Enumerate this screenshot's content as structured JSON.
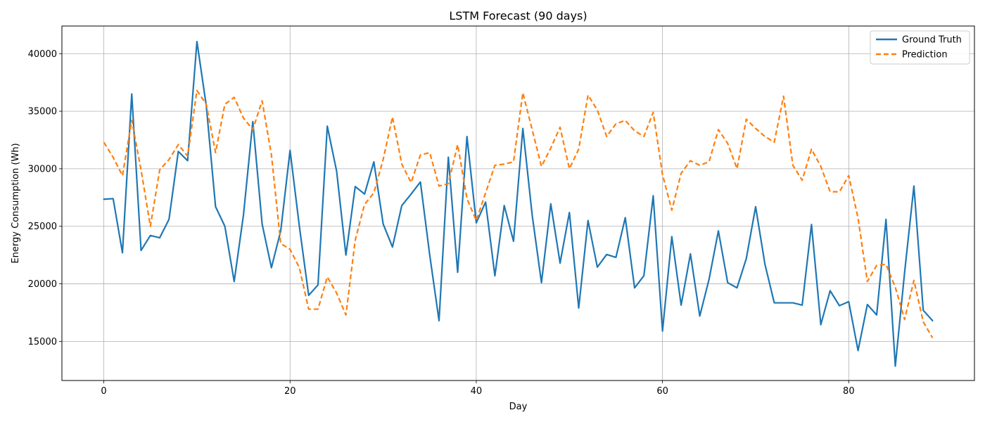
{
  "chart_data": {
    "type": "line",
    "title": "LSTM Forecast (90 days)",
    "xlabel": "Day",
    "ylabel": "Energy Consumption (Wh)",
    "xlim": [
      -4.5,
      93.5
    ],
    "ylim": [
      11600,
      42400
    ],
    "xticks": [
      0,
      20,
      40,
      60,
      80
    ],
    "yticks": [
      15000,
      20000,
      25000,
      30000,
      35000,
      40000
    ],
    "grid": true,
    "legend_position": "upper right",
    "series": [
      {
        "name": "Ground Truth",
        "color": "#1f77b4",
        "style": "solid",
        "x_start": 0,
        "values": [
          27350,
          27400,
          22700,
          36500,
          22900,
          24200,
          24000,
          25600,
          31500,
          30700,
          41050,
          35500,
          26700,
          25000,
          20200,
          26000,
          34100,
          25200,
          21400,
          24600,
          31600,
          25000,
          19000,
          19900,
          33700,
          29800,
          22500,
          28450,
          27800,
          30600,
          25200,
          23200,
          26800,
          27800,
          28850,
          22500,
          16800,
          31000,
          21000,
          32800,
          25300,
          27100,
          20700,
          26800,
          23700,
          33500,
          26000,
          20100,
          26950,
          21800,
          26200,
          17900,
          25500,
          21450,
          22550,
          22300,
          25750,
          19650,
          20700,
          27650,
          15900,
          24100,
          18150,
          22600,
          17200,
          20400,
          24600,
          20100,
          19650,
          22200,
          26700,
          21700,
          18350,
          18350,
          18350,
          18150,
          25150,
          16450,
          19400,
          18100,
          18450,
          14200,
          18200,
          17300,
          25600,
          12850,
          21000,
          28500,
          17700,
          16800
        ]
      },
      {
        "name": "Prediction",
        "color": "#ff7f0e",
        "style": "dashed",
        "x_start": 0,
        "values": [
          32300,
          31000,
          29400,
          34200,
          29900,
          25000,
          29900,
          30800,
          32100,
          31100,
          36800,
          35600,
          31400,
          35600,
          36200,
          34400,
          33400,
          35900,
          31200,
          23500,
          23000,
          21400,
          17800,
          17800,
          20600,
          19200,
          17300,
          23800,
          26900,
          27900,
          30800,
          34500,
          30400,
          28800,
          31200,
          31400,
          28500,
          28700,
          32100,
          27400,
          25500,
          27900,
          30300,
          30400,
          30600,
          36600,
          33400,
          30200,
          31800,
          33600,
          30000,
          31700,
          36400,
          35100,
          32800,
          33900,
          34200,
          33300,
          32800,
          34900,
          29500,
          26400,
          29600,
          30700,
          30300,
          30600,
          33400,
          32200,
          30000,
          34300,
          33500,
          32800,
          32300,
          36300,
          30300,
          29000,
          31700,
          30200,
          28000,
          28000,
          29400,
          25700,
          20200,
          21600,
          21700,
          19700,
          16900,
          20300,
          16700,
          15300
        ]
      }
    ]
  }
}
